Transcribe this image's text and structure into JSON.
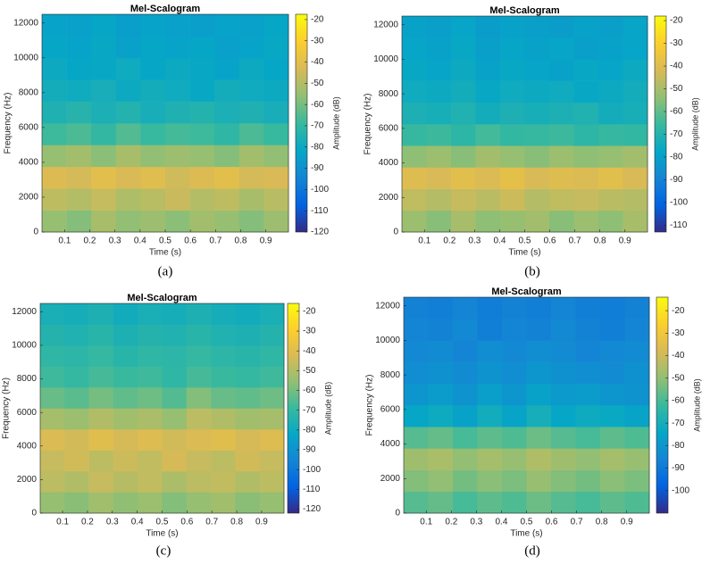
{
  "chart_data": [
    {
      "type": "heatmap",
      "title": "Mel-Scalogram",
      "xlabel": "Time (s)",
      "ylabel": "Frequency (Hz)",
      "caption": "(a)",
      "clabel": "Amplitude (dB)",
      "xbins": [
        0.01,
        0.108,
        0.206,
        0.304,
        0.402,
        0.5,
        0.598,
        0.696,
        0.794,
        0.892,
        0.99
      ],
      "ybins": [
        0,
        1250,
        2500,
        3750,
        5000,
        6250,
        7500,
        8750,
        10000,
        11250,
        12500
      ],
      "z": [
        [
          -55,
          -58,
          -52,
          -56,
          -54,
          -57,
          -53,
          -55,
          -58,
          -54
        ],
        [
          -48,
          -50,
          -47,
          -51,
          -49,
          -46,
          -50,
          -48,
          -52,
          -49
        ],
        [
          -42,
          -44,
          -40,
          -43,
          -41,
          -45,
          -42,
          -40,
          -44,
          -43
        ],
        [
          -55,
          -53,
          -57,
          -52,
          -56,
          -54,
          -55,
          -58,
          -53,
          -56
        ],
        [
          -68,
          -66,
          -70,
          -65,
          -69,
          -67,
          -68,
          -71,
          -66,
          -69
        ],
        [
          -75,
          -73,
          -76,
          -74,
          -77,
          -75,
          -74,
          -76,
          -75,
          -77
        ],
        [
          -78,
          -79,
          -77,
          -80,
          -78,
          -79,
          -81,
          -78,
          -79,
          -80
        ],
        [
          -80,
          -82,
          -81,
          -79,
          -82,
          -80,
          -81,
          -83,
          -80,
          -82
        ],
        [
          -82,
          -83,
          -81,
          -84,
          -82,
          -83,
          -82,
          -84,
          -83,
          -81
        ],
        [
          -83,
          -84,
          -82,
          -85,
          -83,
          -84,
          -85,
          -83,
          -84,
          -82
        ]
      ],
      "xlim": [
        0.01,
        0.99
      ],
      "ylim": [
        0,
        12500
      ],
      "xticks": [
        0.1,
        0.2,
        0.3,
        0.4,
        0.5,
        0.6,
        0.7,
        0.8,
        0.9
      ],
      "yticks": [
        0,
        2000,
        4000,
        6000,
        8000,
        10000,
        12000
      ],
      "clim": [
        -120,
        -17.5
      ],
      "cticks": [
        -120,
        -110,
        -100,
        -90,
        -80,
        -70,
        -60,
        -50,
        -40,
        -30,
        -20
      ],
      "colormap": [
        "#352a87",
        "#0363e1",
        "#1485d4",
        "#06a7c6",
        "#38b99e",
        "#92bf73",
        "#d9ba56",
        "#fcce2e",
        "#f9fb0e"
      ]
    },
    {
      "type": "heatmap",
      "title": "Mel-Scalogram",
      "xlabel": "Time (s)",
      "ylabel": "Frequency (Hz)",
      "caption": "(b)",
      "clabel": "Amplitude (dB)",
      "xbins": [
        0.01,
        0.108,
        0.206,
        0.304,
        0.402,
        0.5,
        0.598,
        0.696,
        0.794,
        0.892,
        0.99
      ],
      "ybins": [
        0,
        1250,
        2500,
        3750,
        5000,
        6250,
        7500,
        8750,
        10000,
        11250,
        12500
      ],
      "z": [
        [
          -52,
          -55,
          -50,
          -54,
          -53,
          -51,
          -55,
          -52,
          -54,
          -50
        ],
        [
          -46,
          -48,
          -45,
          -47,
          -44,
          -48,
          -46,
          -45,
          -47,
          -48
        ],
        [
          -40,
          -42,
          -39,
          -41,
          -38,
          -42,
          -40,
          -41,
          -39,
          -42
        ],
        [
          -54,
          -52,
          -55,
          -51,
          -53,
          -55,
          -52,
          -54,
          -53,
          -51
        ],
        [
          -66,
          -65,
          -68,
          -64,
          -67,
          -66,
          -65,
          -68,
          -66,
          -67
        ],
        [
          -72,
          -73,
          -71,
          -74,
          -72,
          -73,
          -72,
          -71,
          -74,
          -73
        ],
        [
          -75,
          -76,
          -74,
          -77,
          -75,
          -76,
          -75,
          -77,
          -76,
          -74
        ],
        [
          -77,
          -78,
          -76,
          -79,
          -77,
          -78,
          -79,
          -77,
          -78,
          -76
        ],
        [
          -78,
          -79,
          -77,
          -80,
          -78,
          -79,
          -78,
          -80,
          -79,
          -78
        ],
        [
          -79,
          -80,
          -78,
          -81,
          -79,
          -80,
          -81,
          -79,
          -80,
          -78
        ]
      ],
      "xlim": [
        0.01,
        0.99
      ],
      "ylim": [
        0,
        12500
      ],
      "xticks": [
        0.1,
        0.2,
        0.3,
        0.4,
        0.5,
        0.6,
        0.7,
        0.8,
        0.9
      ],
      "yticks": [
        0,
        2000,
        4000,
        6000,
        8000,
        10000,
        12000
      ],
      "clim": [
        -113,
        -18
      ],
      "cticks": [
        -110,
        -100,
        -90,
        -80,
        -70,
        -60,
        -50,
        -40,
        -30,
        -20
      ],
      "colormap": [
        "#352a87",
        "#0363e1",
        "#1485d4",
        "#06a7c6",
        "#38b99e",
        "#92bf73",
        "#d9ba56",
        "#fcce2e",
        "#f9fb0e"
      ]
    },
    {
      "type": "heatmap",
      "title": "Mel-Scalogram",
      "xlabel": "Time (s)",
      "ylabel": "Frequency (Hz)",
      "caption": "(c)",
      "clabel": "Amplitude (dB)",
      "xbins": [
        0.01,
        0.108,
        0.206,
        0.304,
        0.402,
        0.5,
        0.598,
        0.696,
        0.794,
        0.892,
        0.99
      ],
      "ybins": [
        0,
        1250,
        2500,
        3750,
        5000,
        6250,
        7500,
        8750,
        10000,
        11250,
        12500
      ],
      "z": [
        [
          -55,
          -57,
          -53,
          -56,
          -54,
          -58,
          -55,
          -53,
          -57,
          -55
        ],
        [
          -48,
          -50,
          -46,
          -49,
          -47,
          -51,
          -48,
          -47,
          -50,
          -48
        ],
        [
          -46,
          -44,
          -48,
          -45,
          -47,
          -43,
          -46,
          -48,
          -44,
          -46
        ],
        [
          -42,
          -44,
          -40,
          -43,
          -41,
          -44,
          -42,
          -40,
          -43,
          -41
        ],
        [
          -52,
          -54,
          -50,
          -53,
          -51,
          -55,
          -48,
          -50,
          -53,
          -52
        ],
        [
          -62,
          -64,
          -60,
          -63,
          -61,
          -65,
          -58,
          -62,
          -63,
          -61
        ],
        [
          -68,
          -70,
          -67,
          -69,
          -68,
          -71,
          -67,
          -69,
          -70,
          -68
        ],
        [
          -71,
          -72,
          -70,
          -73,
          -71,
          -72,
          -70,
          -72,
          -73,
          -71
        ],
        [
          -74,
          -75,
          -73,
          -76,
          -74,
          -75,
          -73,
          -75,
          -76,
          -74
        ],
        [
          -77,
          -78,
          -76,
          -79,
          -77,
          -78,
          -76,
          -78,
          -79,
          -77
        ]
      ],
      "xlim": [
        0.01,
        0.99
      ],
      "ylim": [
        0,
        12500
      ],
      "xticks": [
        0.1,
        0.2,
        0.3,
        0.4,
        0.5,
        0.6,
        0.7,
        0.8,
        0.9
      ],
      "yticks": [
        0,
        2000,
        4000,
        6000,
        8000,
        10000,
        12000
      ],
      "clim": [
        -122,
        -16
      ],
      "cticks": [
        -120,
        -110,
        -100,
        -90,
        -80,
        -70,
        -60,
        -50,
        -40,
        -30,
        -20
      ],
      "colormap": [
        "#352a87",
        "#0363e1",
        "#1485d4",
        "#06a7c6",
        "#38b99e",
        "#92bf73",
        "#d9ba56",
        "#fcce2e",
        "#f9fb0e"
      ]
    },
    {
      "type": "heatmap",
      "title": "Mel-Scalogram",
      "xlabel": "Time (s)",
      "ylabel": "Frequency (Hz)",
      "caption": "(d)",
      "clabel": "Amplitude (dB)",
      "xbins": [
        0.01,
        0.108,
        0.206,
        0.304,
        0.402,
        0.5,
        0.598,
        0.696,
        0.794,
        0.892,
        0.99
      ],
      "ybins": [
        0,
        1250,
        2500,
        3750,
        5000,
        6250,
        7500,
        8750,
        10000,
        11250,
        12500
      ],
      "z": [
        [
          -58,
          -56,
          -60,
          -57,
          -59,
          -55,
          -58,
          -60,
          -57,
          -59
        ],
        [
          -52,
          -50,
          -54,
          -51,
          -53,
          -49,
          -52,
          -54,
          -51,
          -53
        ],
        [
          -48,
          -46,
          -50,
          -47,
          -49,
          -45,
          -48,
          -50,
          -47,
          -49
        ],
        [
          -58,
          -56,
          -60,
          -57,
          -59,
          -55,
          -58,
          -60,
          -57,
          -59
        ],
        [
          -74,
          -72,
          -76,
          -71,
          -75,
          -70,
          -74,
          -72,
          -73,
          -75
        ],
        [
          -80,
          -78,
          -81,
          -77,
          -80,
          -76,
          -79,
          -78,
          -80,
          -81
        ],
        [
          -83,
          -82,
          -84,
          -81,
          -83,
          -80,
          -82,
          -83,
          -84,
          -82
        ],
        [
          -85,
          -84,
          -86,
          -83,
          -85,
          -83,
          -84,
          -86,
          -85,
          -84
        ],
        [
          -86,
          -87,
          -85,
          -88,
          -86,
          -87,
          -85,
          -87,
          -88,
          -86
        ],
        [
          -87,
          -88,
          -86,
          -89,
          -87,
          -88,
          -86,
          -88,
          -89,
          -87
        ]
      ],
      "xlim": [
        0.01,
        0.99
      ],
      "ylim": [
        0,
        12500
      ],
      "xticks": [
        0.1,
        0.2,
        0.3,
        0.4,
        0.5,
        0.6,
        0.7,
        0.8,
        0.9
      ],
      "yticks": [
        0,
        2000,
        4000,
        6000,
        8000,
        10000,
        12000
      ],
      "clim": [
        -110,
        -14
      ],
      "cticks": [
        -100,
        -90,
        -80,
        -70,
        -60,
        -50,
        -40,
        -30,
        -20
      ],
      "colormap": [
        "#352a87",
        "#0363e1",
        "#1485d4",
        "#06a7c6",
        "#38b99e",
        "#92bf73",
        "#d9ba56",
        "#fcce2e",
        "#f9fb0e"
      ]
    }
  ]
}
